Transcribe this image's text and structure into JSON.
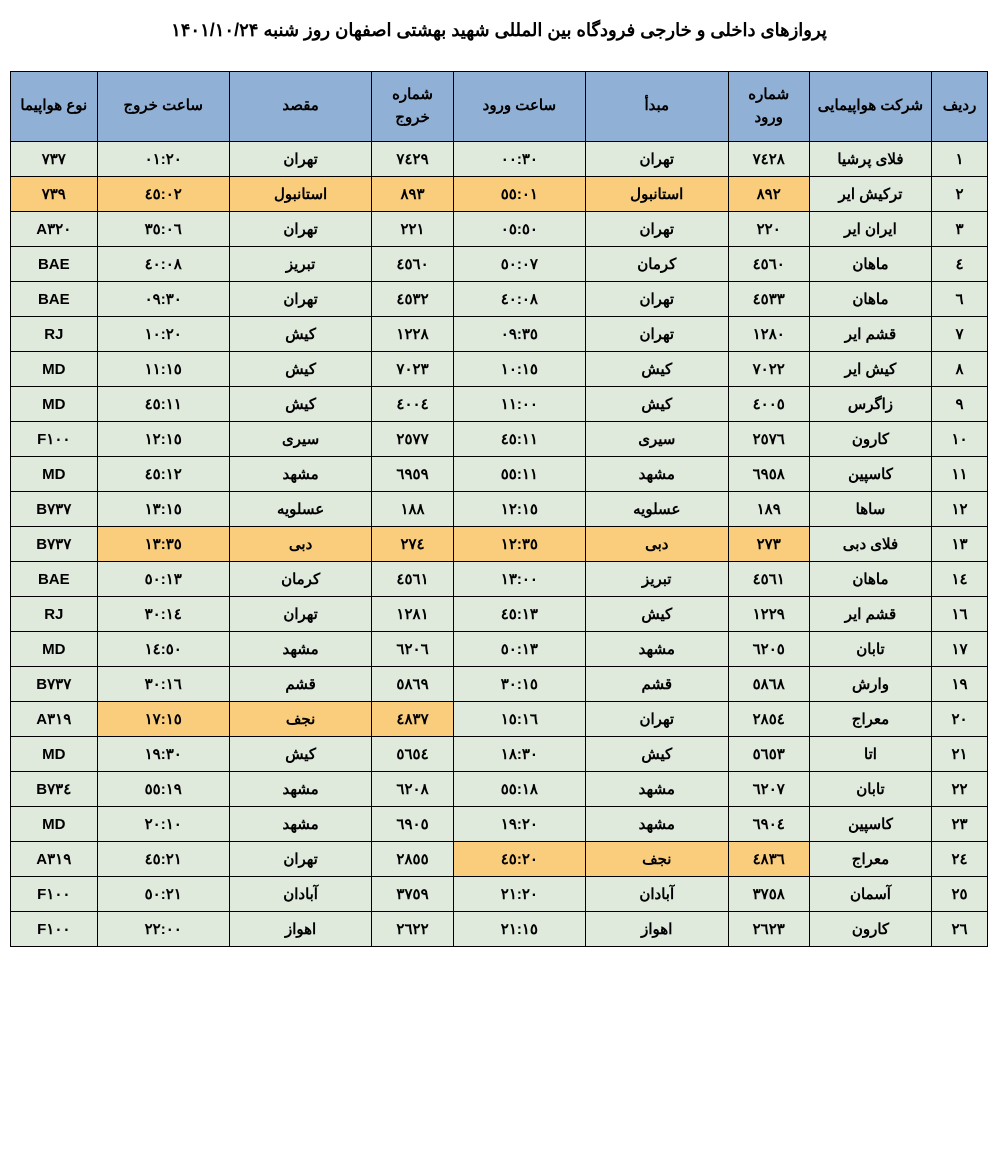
{
  "title": "پروازهای داخلی و خارجی فرودگاه بین المللی شهید بهشتی اصفهان روز  شنبه ۱۴۰۱/۱۰/۲۴",
  "colors": {
    "header_bg": "#91b0d6",
    "row_bg": "#dfe9dc",
    "highlight_bg": "#f9cd7b",
    "border": "#000000",
    "text": "#000000",
    "page_bg": "#ffffff"
  },
  "typography": {
    "title_fontsize": 18,
    "header_fontsize": 15,
    "cell_fontsize": 15,
    "font_weight": "bold",
    "font_family": "Tahoma"
  },
  "columns": [
    {
      "key": "idx",
      "label": "ردیف",
      "width_pct": 5.5
    },
    {
      "key": "airline",
      "label": "شرکت هواپیمایی",
      "width_pct": 12
    },
    {
      "key": "arr_no",
      "label": "شماره ورود",
      "width_pct": 8
    },
    {
      "key": "origin",
      "label": "مبدأ",
      "width_pct": 14
    },
    {
      "key": "arr_time",
      "label": "ساعت ورود",
      "width_pct": 13
    },
    {
      "key": "dep_no",
      "label": "شماره خروج",
      "width_pct": 8
    },
    {
      "key": "dest",
      "label": "مقصد",
      "width_pct": 14
    },
    {
      "key": "dep_time",
      "label": "ساعت خروج",
      "width_pct": 13
    },
    {
      "key": "aircraft",
      "label": "نوع هواپیما",
      "width_pct": 8.5
    }
  ],
  "rows": [
    {
      "idx": "۱",
      "airline": "فلای پرشیا",
      "arr_no": "۷٤۲۸",
      "origin": "تهران",
      "arr_time": "۰۰:۳۰",
      "dep_no": "۷٤۲۹",
      "dest": "تهران",
      "dep_time": "۰۱:۲۰",
      "aircraft": "۷۳۷",
      "hl": []
    },
    {
      "idx": "۲",
      "airline": "ترکیش ایر",
      "arr_no": "۸۹۲",
      "origin": "استانبول",
      "arr_time": "۰۱:٥٥",
      "dep_no": "۸۹۳",
      "dest": "استانبول",
      "dep_time": "۰۲:٤٥",
      "aircraft": "۷۳۹",
      "hl": [
        "arr_no",
        "origin",
        "arr_time",
        "dep_no",
        "dest",
        "dep_time",
        "aircraft"
      ]
    },
    {
      "idx": "۳",
      "airline": "ایران ایر",
      "arr_no": "۲۲۰",
      "origin": "تهران",
      "arr_time": "۰٥:٥۰",
      "dep_no": "۲۲۱",
      "dest": "تهران",
      "dep_time": "۰٦:۳٥",
      "aircraft": "A۳۲۰",
      "hl": []
    },
    {
      "idx": "٤",
      "airline": "ماهان",
      "arr_no": "٤٥٦۰",
      "origin": "کرمان",
      "arr_time": "۰۷:٥۰",
      "dep_no": "٤٥٦۰",
      "dest": "تبریز",
      "dep_time": "۰۸:٤۰",
      "aircraft": "BAE",
      "hl": []
    },
    {
      "idx": "٦",
      "airline": "ماهان",
      "arr_no": "٤٥۳۳",
      "origin": "تهران",
      "arr_time": "۰۸:٤۰",
      "dep_no": "٤٥۳۲",
      "dest": "تهران",
      "dep_time": "۰۹:۳۰",
      "aircraft": "BAE",
      "hl": []
    },
    {
      "idx": "۷",
      "airline": "قشم ایر",
      "arr_no": "۱۲۸۰",
      "origin": "تهران",
      "arr_time": "۰۹:۳٥",
      "dep_no": "۱۲۲۸",
      "dest": "کیش",
      "dep_time": "۱۰:۲۰",
      "aircraft": "RJ",
      "hl": []
    },
    {
      "idx": "۸",
      "airline": "کیش ایر",
      "arr_no": "۷۰۲۲",
      "origin": "کیش",
      "arr_time": "۱۰:۱٥",
      "dep_no": "۷۰۲۳",
      "dest": "کیش",
      "dep_time": "۱۱:۱٥",
      "aircraft": "MD",
      "hl": []
    },
    {
      "idx": "۹",
      "airline": "زاگرس",
      "arr_no": "٤۰۰٥",
      "origin": "کیش",
      "arr_time": "۱۱:۰۰",
      "dep_no": "٤۰۰٤",
      "dest": "کیش",
      "dep_time": "۱۱:٤٥",
      "aircraft": "MD",
      "hl": []
    },
    {
      "idx": "۱۰",
      "airline": "کارون",
      "arr_no": "۲٥۷٦",
      "origin": "سیری",
      "arr_time": "۱۱:٤٥",
      "dep_no": "۲٥۷۷",
      "dest": "سیری",
      "dep_time": "۱۲:۱٥",
      "aircraft": "F۱۰۰",
      "hl": []
    },
    {
      "idx": "۱۱",
      "airline": "کاسپین",
      "arr_no": "٦۹٥۸",
      "origin": "مشهد",
      "arr_time": "۱۱:٥٥",
      "dep_no": "٦۹٥۹",
      "dest": "مشهد",
      "dep_time": "۱۲:٤٥",
      "aircraft": "MD",
      "hl": []
    },
    {
      "idx": "۱۲",
      "airline": "ساها",
      "arr_no": "۱۸۹",
      "origin": "عسلویه",
      "arr_time": "۱۲:۱٥",
      "dep_no": "۱۸۸",
      "dest": "عسلویه",
      "dep_time": "۱۳:۱٥",
      "aircraft": "B۷۳۷",
      "hl": []
    },
    {
      "idx": "۱۳",
      "airline": "فلای دبی",
      "arr_no": "۲۷۳",
      "origin": "دبی",
      "arr_time": "۱۲:۳٥",
      "dep_no": "۲۷٤",
      "dest": "دبی",
      "dep_time": "۱۳:۳٥",
      "aircraft": "B۷۳۷",
      "hl": [
        "arr_no",
        "origin",
        "arr_time",
        "dep_no",
        "dest",
        "dep_time"
      ]
    },
    {
      "idx": "۱٤",
      "airline": "ماهان",
      "arr_no": "٤٥٦۱",
      "origin": "تبریز",
      "arr_time": "۱۳:۰۰",
      "dep_no": "٤٥٦۱",
      "dest": "کرمان",
      "dep_time": "۱۳:٥۰",
      "aircraft": "BAE",
      "hl": []
    },
    {
      "idx": "۱٦",
      "airline": "قشم ایر",
      "arr_no": "۱۲۲۹",
      "origin": "کیش",
      "arr_time": "۱۳:٤٥",
      "dep_no": "۱۲۸۱",
      "dest": "تهران",
      "dep_time": "۱٤:۳۰",
      "aircraft": "RJ",
      "hl": []
    },
    {
      "idx": "۱۷",
      "airline": "تابان",
      "arr_no": "٦۲۰٥",
      "origin": "مشهد",
      "arr_time": "۱۳:٥۰",
      "dep_no": "٦۲۰٦",
      "dest": "مشهد",
      "dep_time": "۱٤:٥۰",
      "aircraft": "MD",
      "hl": []
    },
    {
      "idx": "۱۹",
      "airline": "وارش",
      "arr_no": "٥۸٦۸",
      "origin": "قشم",
      "arr_time": "۱٥:۳۰",
      "dep_no": "٥۸٦۹",
      "dest": "قشم",
      "dep_time": "۱٦:۳۰",
      "aircraft": "B۷۳۷",
      "hl": []
    },
    {
      "idx": "۲۰",
      "airline": "معراج",
      "arr_no": "۲۸٥٤",
      "origin": "تهران",
      "arr_time": "۱٦:۱٥",
      "dep_no": "٤۸۳۷",
      "dest": "نجف",
      "dep_time": "۱۷:۱٥",
      "aircraft": "A۳۱۹",
      "hl": [
        "dep_no",
        "dest",
        "dep_time"
      ]
    },
    {
      "idx": "۲۱",
      "airline": "اتا",
      "arr_no": "٥٦٥۳",
      "origin": "کیش",
      "arr_time": "۱۸:۳۰",
      "dep_no": "٥٦٥٤",
      "dest": "کیش",
      "dep_time": "۱۹:۳۰",
      "aircraft": "MD",
      "hl": []
    },
    {
      "idx": "۲۲",
      "airline": "تابان",
      "arr_no": "٦۲۰۷",
      "origin": "مشهد",
      "arr_time": "۱۸:٥٥",
      "dep_no": "٦۲۰۸",
      "dest": "مشهد",
      "dep_time": "۱۹:٥٥",
      "aircraft": "B۷۳٤",
      "hl": []
    },
    {
      "idx": "۲۳",
      "airline": "کاسپین",
      "arr_no": "٦۹۰٤",
      "origin": "مشهد",
      "arr_time": "۱۹:۲۰",
      "dep_no": "٦۹۰٥",
      "dest": "مشهد",
      "dep_time": "۲۰:۱۰",
      "aircraft": "MD",
      "hl": []
    },
    {
      "idx": "۲٤",
      "airline": "معراج",
      "arr_no": "٤۸۳٦",
      "origin": "نجف",
      "arr_time": "۲۰:٤٥",
      "dep_no": "۲۸٥٥",
      "dest": "تهران",
      "dep_time": "۲۱:٤٥",
      "aircraft": "A۳۱۹",
      "hl": [
        "arr_no",
        "origin",
        "arr_time"
      ]
    },
    {
      "idx": "۲٥",
      "airline": "آسمان",
      "arr_no": "۳۷٥۸",
      "origin": "آبادان",
      "arr_time": "۲۱:۲۰",
      "dep_no": "۳۷٥۹",
      "dest": "آبادان",
      "dep_time": "۲۱:٥۰",
      "aircraft": "F۱۰۰",
      "hl": []
    },
    {
      "idx": "۲٦",
      "airline": "کارون",
      "arr_no": "۲٦۲۳",
      "origin": "اهواز",
      "arr_time": "۲۱:۱٥",
      "dep_no": "۲٦۲۲",
      "dest": "اهواز",
      "dep_time": "۲۲:۰۰",
      "aircraft": "F۱۰۰",
      "hl": []
    }
  ]
}
